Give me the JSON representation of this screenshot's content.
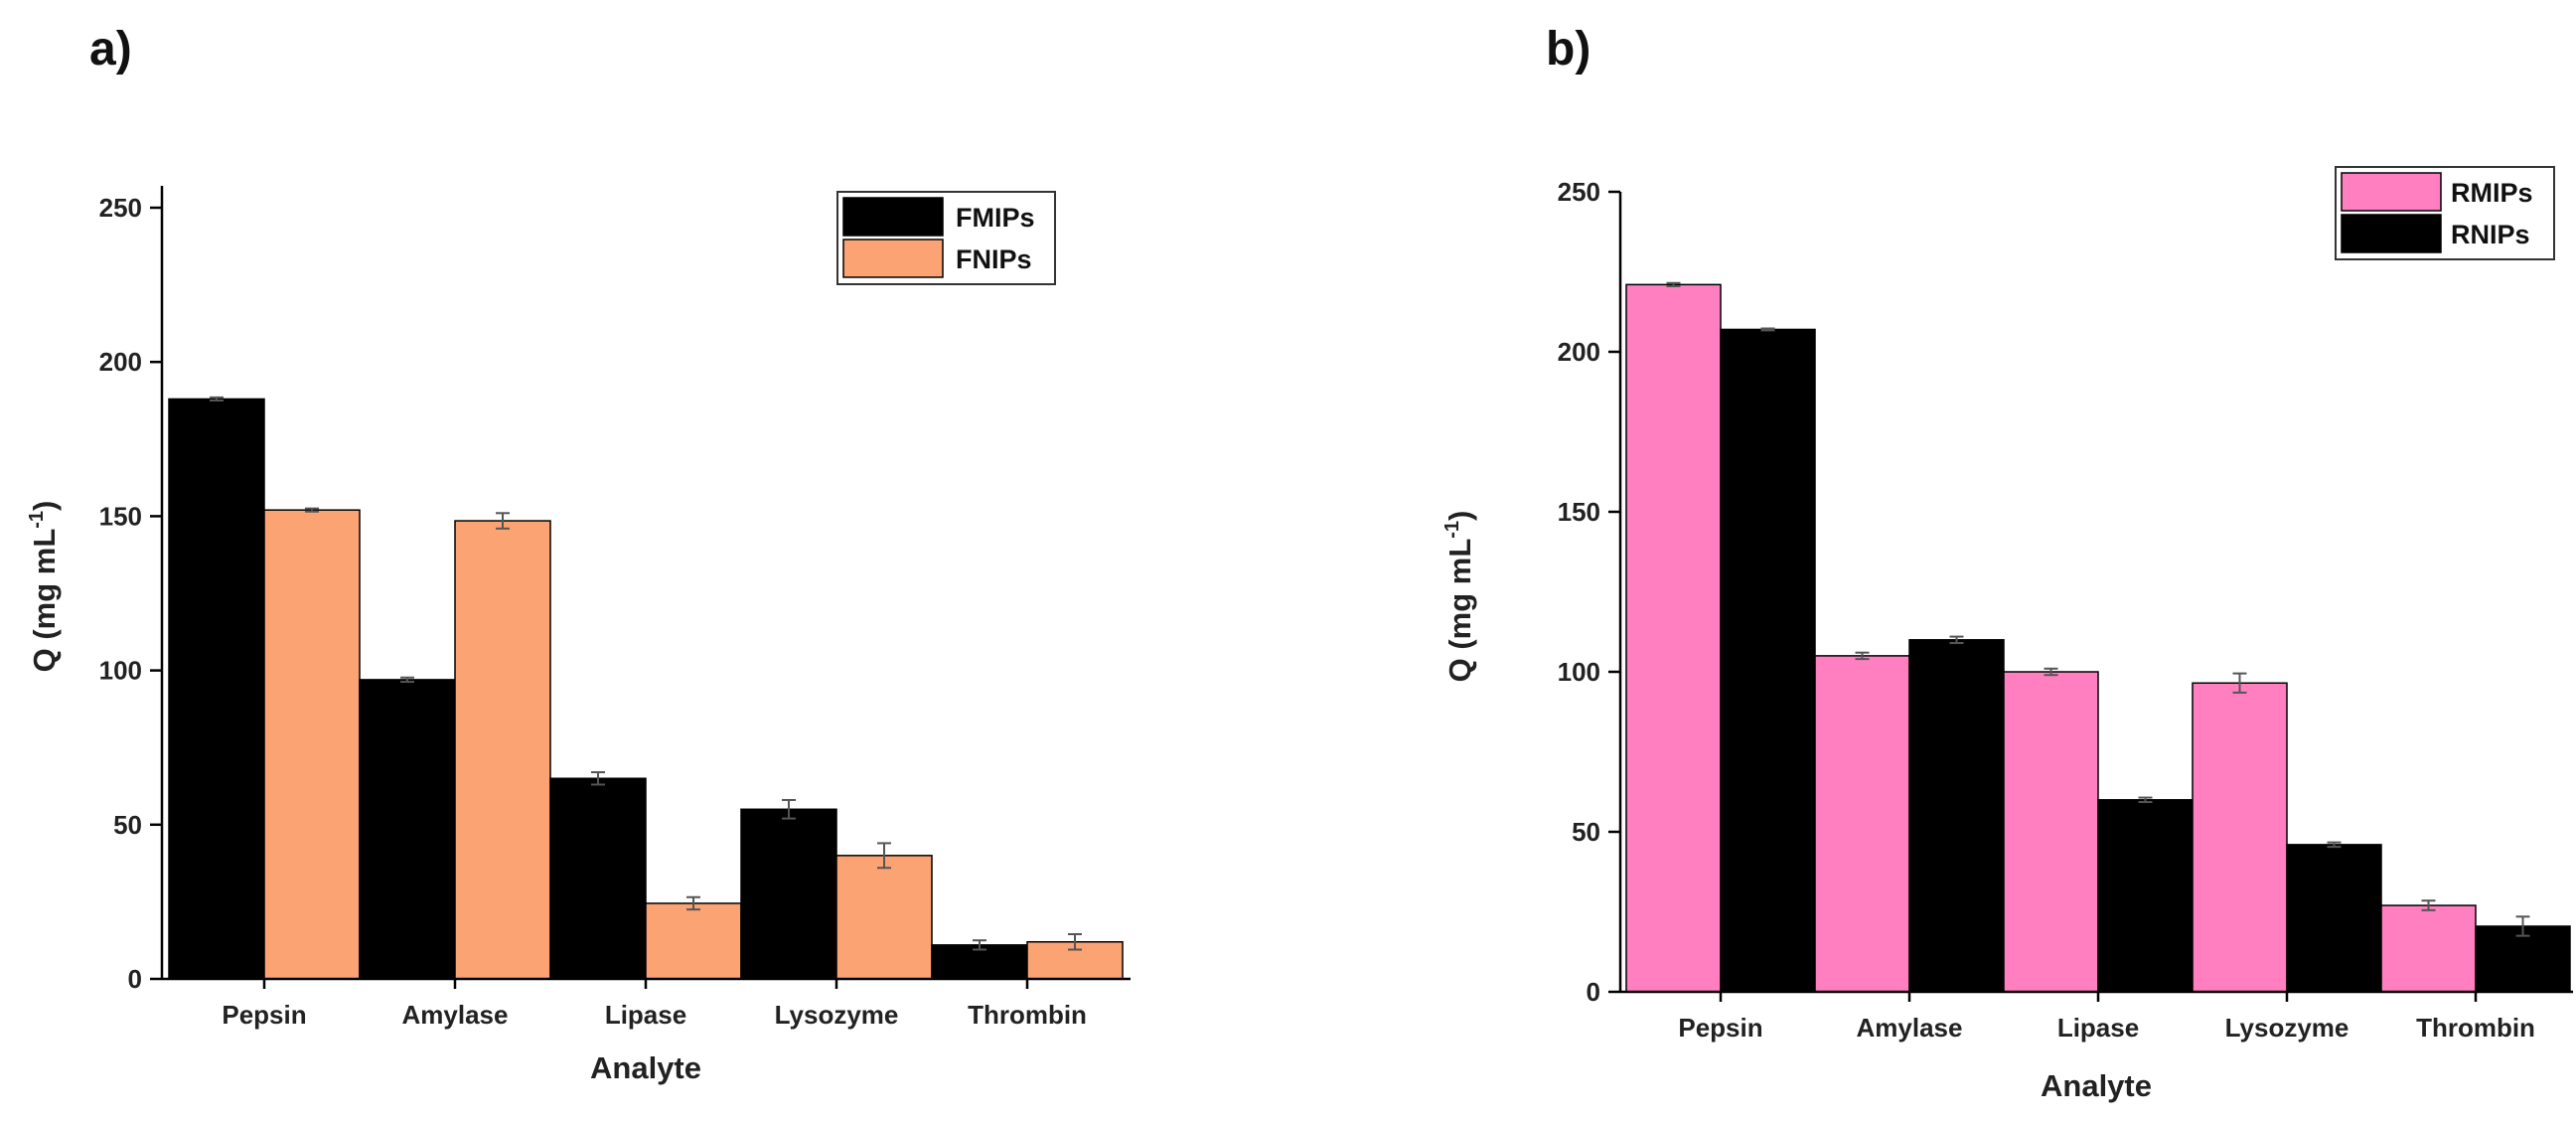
{
  "chart_data": [
    {
      "panel_label": "a)",
      "type": "bar",
      "categories": [
        "Pepsin",
        "Amylase",
        "Lipase",
        "Lysozyme",
        "Thrombin"
      ],
      "series": [
        {
          "name": "FMIPs",
          "color": "#000000",
          "values": [
            188,
            97,
            65,
            55,
            11
          ],
          "errors": [
            0.5,
            0.7,
            2,
            3,
            1.5
          ]
        },
        {
          "name": "FNIPs",
          "color": "#FCA374",
          "values": [
            152,
            148.5,
            24.5,
            40,
            12
          ],
          "errors": [
            0.5,
            2.5,
            2,
            4,
            2.5
          ]
        }
      ],
      "xlabel": "Analyte",
      "ylabel_main": "Q (mg mL",
      "ylabel_sup": "-1",
      "ylabel_close": ")",
      "ylim": [
        0,
        250
      ],
      "yticks": [
        "0",
        "50",
        "100",
        "150",
        "200",
        "250"
      ],
      "legend": "top-right",
      "grid": false
    },
    {
      "panel_label": "b)",
      "type": "bar",
      "categories": [
        "Pepsin",
        "Amylase",
        "Lipase",
        "Lysozyme",
        "Thrombin"
      ],
      "series": [
        {
          "name": "RMIPs",
          "color": "#FF7FC0",
          "values": [
            221,
            105,
            100,
            96.5,
            27
          ],
          "errors": [
            0.5,
            1,
            1,
            3,
            1.5
          ]
        },
        {
          "name": "RNIPs",
          "color": "#000000",
          "values": [
            207,
            110,
            60,
            46,
            20.5
          ],
          "errors": [
            0.3,
            1,
            0.7,
            0.7,
            3
          ]
        }
      ],
      "xlabel": "Analyte",
      "ylabel_main": "Q (mg mL",
      "ylabel_sup": "-1",
      "ylabel_close": ")",
      "ylim": [
        0,
        250
      ],
      "yticks": [
        "0",
        "50",
        "100",
        "150",
        "200",
        "250"
      ],
      "legend": "top-right",
      "grid": false
    }
  ]
}
